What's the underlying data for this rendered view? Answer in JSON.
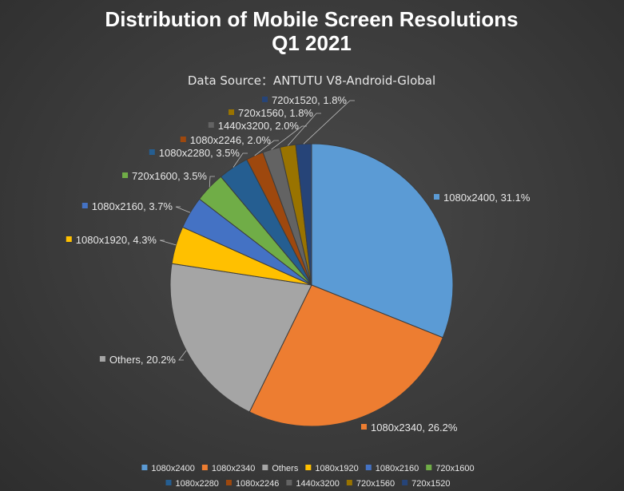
{
  "chart_data": {
    "type": "pie",
    "title": [
      "Distribution of Mobile Screen Resolutions",
      "Q1 2021"
    ],
    "subtitle": "Data Source：ANTUTU V8-Android-Global",
    "start_angle_deg": 0,
    "direction": "clockwise",
    "legend_position": "bottom",
    "slices": [
      {
        "label": "1080x2400",
        "value": 31.1,
        "display": "1080x2400, 31.1%",
        "color": "#5b9bd5"
      },
      {
        "label": "1080x2340",
        "value": 26.2,
        "display": "1080x2340, 26.2%",
        "color": "#ed7d31"
      },
      {
        "label": "Others",
        "value": 20.2,
        "display": "Others, 20.2%",
        "color": "#a5a5a5"
      },
      {
        "label": "1080x1920",
        "value": 4.3,
        "display": "1080x1920, 4.3%",
        "color": "#ffc000"
      },
      {
        "label": "1080x2160",
        "value": 3.7,
        "display": "1080x2160, 3.7%",
        "color": "#4472c4"
      },
      {
        "label": "720x1600",
        "value": 3.5,
        "display": "720x1600, 3.5%",
        "color": "#70ad47"
      },
      {
        "label": "1080x2280",
        "value": 3.5,
        "display": "1080x2280, 3.5%",
        "color": "#255e91"
      },
      {
        "label": "1080x2246",
        "value": 2.0,
        "display": "1080x2246, 2.0%",
        "color": "#9e480e"
      },
      {
        "label": "1440x3200",
        "value": 2.0,
        "display": "1440x3200, 2.0%",
        "color": "#636363"
      },
      {
        "label": "720x1560",
        "value": 1.8,
        "display": "720x1560, 1.8%",
        "color": "#997300"
      },
      {
        "label": "720x1520",
        "value": 1.8,
        "display": "720x1520, 1.8%",
        "color": "#264478"
      }
    ]
  }
}
